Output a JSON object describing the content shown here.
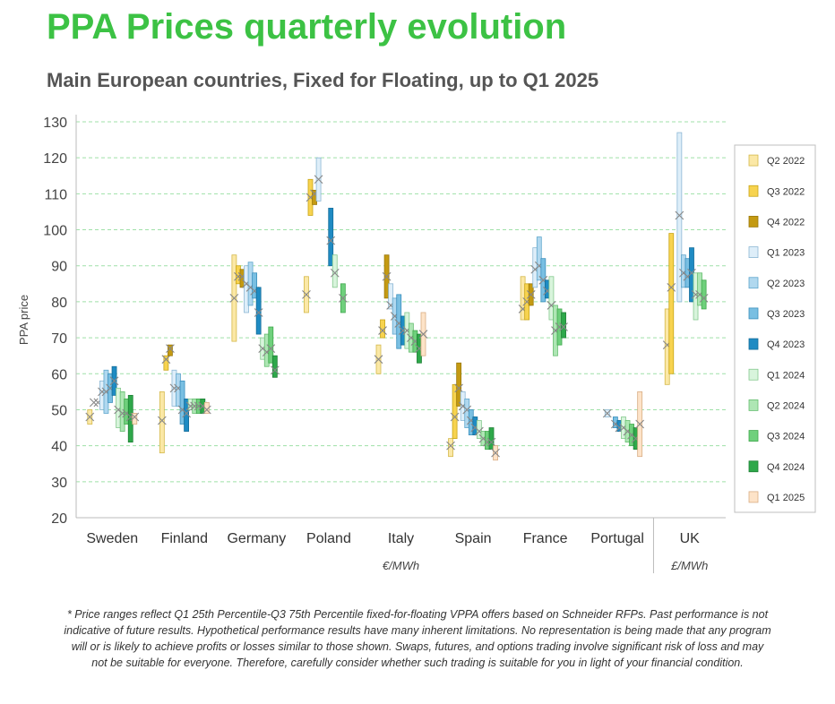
{
  "header": {
    "title": "PPA Prices quarterly evolution",
    "subtitle": "Main European countries, Fixed for Floating, up to Q1 2025"
  },
  "footnote": "* Price ranges reflect Q1 25th Percentile-Q3 75th Percentile fixed-for-floating VPPA offers based on Schneider RFPs. Past performance is not indicative of future results. Hypothetical performance results have many inherent limitations. No representation is being made that any program will or is likely to achieve profits or losses similar to those shown. Swaps, futures, and options trading involve significant risk of loss and may not be suitable for everyone. Therefore, carefully consider whether such trading is suitable for you in light of your financial condition.",
  "chart_data": {
    "type": "box",
    "ylabel": "PPA price",
    "ylim": [
      20,
      130
    ],
    "yticks": [
      20,
      30,
      40,
      50,
      60,
      70,
      80,
      90,
      100,
      110,
      120,
      130
    ],
    "grid": "horizontal dashed",
    "legend_position": "right",
    "unit_labels": [
      {
        "text": "€/MWh",
        "under": "Italy"
      },
      {
        "text": "£/MWh",
        "under": "UK"
      }
    ],
    "categories": [
      "Sweden",
      "Finland",
      "Germany",
      "Poland",
      "Italy",
      "Spain",
      "France",
      "Portugal",
      "UK"
    ],
    "series": [
      {
        "name": "Q2 2022",
        "color": "#fbe8a6",
        "border": "#d4b84a",
        "data": [
          [
            46,
            50,
            48
          ],
          [
            38,
            55,
            47
          ],
          [
            69,
            93,
            81
          ],
          [
            77,
            87,
            82
          ],
          [
            60,
            68,
            64
          ],
          [
            37,
            42,
            40
          ],
          [
            75,
            87,
            78
          ],
          null,
          [
            57,
            78,
            68
          ]
        ]
      },
      {
        "name": "Q3 2022",
        "color": "#f7d34f",
        "border": "#c9a516",
        "data": [
          [
            null,
            null,
            52
          ],
          [
            61,
            65,
            64
          ],
          [
            85,
            90,
            87
          ],
          [
            104,
            114,
            109
          ],
          [
            70,
            75,
            72
          ],
          [
            42,
            57,
            48
          ],
          [
            75,
            85,
            80
          ],
          null,
          [
            60,
            99,
            84
          ]
        ]
      },
      {
        "name": "Q4 2022",
        "color": "#c49a12",
        "border": "#9a780a",
        "data": [
          [
            null,
            null,
            52
          ],
          [
            65,
            68,
            67
          ],
          [
            84,
            89,
            87
          ],
          [
            107,
            111,
            110
          ],
          [
            81,
            93,
            87
          ],
          [
            51,
            63,
            56
          ],
          [
            79,
            85,
            82
          ],
          null,
          [
            null,
            null,
            null
          ]
        ]
      },
      {
        "name": "Q1 2023",
        "color": "#deeef9",
        "border": "#8cb7d4",
        "data": [
          [
            50,
            58,
            55
          ],
          [
            51,
            61,
            56
          ],
          [
            77,
            90,
            85
          ],
          [
            108,
            120,
            114
          ],
          [
            78,
            85,
            79
          ],
          [
            47,
            55,
            51
          ],
          [
            84,
            95,
            89
          ],
          [
            48,
            50,
            49
          ],
          [
            80,
            127,
            104
          ]
        ]
      },
      {
        "name": "Q2 2023",
        "color": "#b0d8ef",
        "border": "#5fa6cc",
        "data": [
          [
            49,
            61,
            55
          ],
          [
            51,
            60,
            56
          ],
          [
            79,
            91,
            84
          ],
          [
            null,
            null,
            null
          ],
          [
            71,
            81,
            76
          ],
          [
            45,
            53,
            50
          ],
          [
            86,
            98,
            90
          ],
          [
            null,
            null,
            null
          ],
          [
            84,
            93,
            88
          ]
        ]
      },
      {
        "name": "Q3 2023",
        "color": "#79bfe2",
        "border": "#3a8fbd",
        "data": [
          [
            52,
            60,
            56
          ],
          [
            46,
            58,
            50
          ],
          [
            81,
            88,
            83
          ],
          [
            null,
            null,
            null
          ],
          [
            67,
            82,
            74
          ],
          [
            43,
            50,
            47
          ],
          [
            80,
            92,
            86
          ],
          [
            45,
            48,
            46
          ],
          [
            84,
            92,
            87
          ]
        ]
      },
      {
        "name": "Q4 2023",
        "color": "#1f8bc3",
        "border": "#146d9a",
        "data": [
          [
            54,
            62,
            58
          ],
          [
            44,
            53,
            49
          ],
          [
            71,
            84,
            77
          ],
          [
            90,
            106,
            97
          ],
          [
            68,
            76,
            72
          ],
          [
            43,
            48,
            45
          ],
          [
            81,
            86,
            83
          ],
          [
            44,
            47,
            45
          ],
          [
            80,
            95,
            88
          ]
        ]
      },
      {
        "name": "Q1 2024",
        "color": "#d8f4dc",
        "border": "#86c98f",
        "data": [
          [
            45,
            56,
            50
          ],
          [
            50,
            53,
            51
          ],
          [
            64,
            70,
            67
          ],
          [
            84,
            93,
            88
          ],
          [
            67,
            77,
            72
          ],
          [
            42,
            47,
            44
          ],
          [
            75,
            87,
            79
          ],
          [
            42,
            48,
            45
          ],
          [
            75,
            88,
            82
          ]
        ]
      },
      {
        "name": "Q2 2024",
        "color": "#aee6b4",
        "border": "#66bd70",
        "data": [
          [
            44,
            55,
            49
          ],
          [
            49,
            53,
            51
          ],
          [
            62,
            71,
            66
          ],
          [
            null,
            null,
            null
          ],
          [
            66,
            74,
            70
          ],
          [
            40,
            44,
            42
          ],
          [
            65,
            79,
            72
          ],
          [
            41,
            47,
            44
          ],
          [
            79,
            88,
            82
          ]
        ]
      },
      {
        "name": "Q3 2024",
        "color": "#6fd07c",
        "border": "#3fa84c",
        "data": [
          [
            46,
            53,
            49
          ],
          [
            49,
            53,
            51
          ],
          [
            63,
            73,
            67
          ],
          [
            77,
            85,
            81
          ],
          [
            66,
            72,
            69
          ],
          [
            39,
            44,
            41
          ],
          [
            68,
            78,
            73
          ],
          [
            40,
            46,
            43
          ],
          [
            78,
            86,
            81
          ]
        ]
      },
      {
        "name": "Q4 2024",
        "color": "#2ea84a",
        "border": "#1e7f35",
        "data": [
          [
            41,
            54,
            48
          ],
          [
            49,
            53,
            51
          ],
          [
            59,
            65,
            61
          ],
          [
            null,
            null,
            null
          ],
          [
            63,
            71,
            67
          ],
          [
            39,
            45,
            41
          ],
          [
            70,
            77,
            73
          ],
          [
            39,
            45,
            42
          ],
          [
            null,
            null,
            null
          ]
        ]
      },
      {
        "name": "Q1 2025",
        "color": "#fde3c8",
        "border": "#d9ad84",
        "data": [
          [
            46,
            49,
            48
          ],
          [
            49,
            52,
            50
          ],
          [
            null,
            null,
            null
          ],
          [
            null,
            null,
            null
          ],
          [
            65,
            77,
            71
          ],
          [
            36,
            40,
            38
          ],
          [
            null,
            null,
            null
          ],
          [
            37,
            55,
            46
          ],
          [
            null,
            null,
            null
          ]
        ]
      }
    ]
  }
}
